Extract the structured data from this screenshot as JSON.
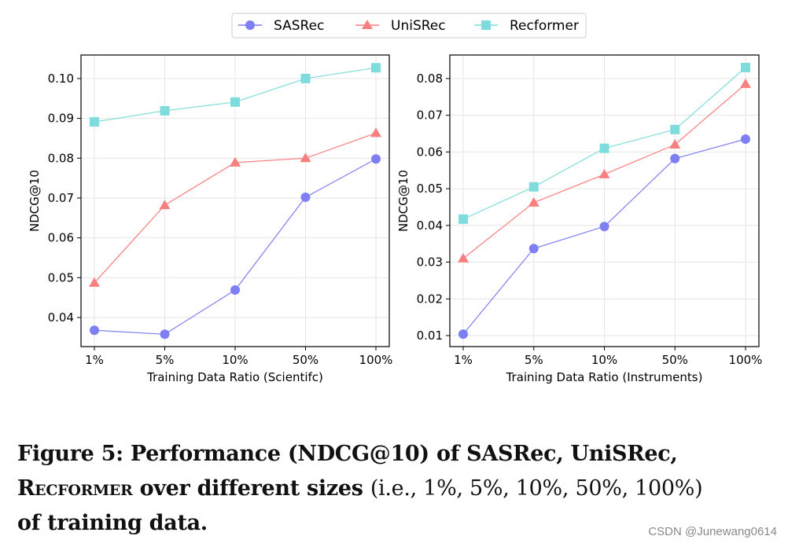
{
  "legend": [
    "SASRec",
    "UniSRec",
    "Recformer"
  ],
  "colors": {
    "SASRec": "#7f7ff5",
    "UniSRec": "#f77f7f",
    "Recformer": "#7fdcdc"
  },
  "markers": {
    "SASRec": "circle",
    "UniSRec": "triangle",
    "Recformer": "square"
  },
  "chart_data": [
    {
      "type": "line",
      "categories": [
        "1%",
        "5%",
        "10%",
        "50%",
        "100%"
      ],
      "xlabel": "Training Data Ratio (Scientifc)",
      "ylabel": "NDCG@10",
      "ylim": [
        0.0327,
        0.1059
      ],
      "yticks": [
        0.04,
        0.05,
        0.06,
        0.07,
        0.08,
        0.09,
        0.1
      ],
      "ytick_labels": [
        "0.04",
        "0.05",
        "0.06",
        "0.07",
        "0.08",
        "0.09",
        "0.10"
      ],
      "grid": true,
      "series": [
        {
          "name": "SASRec",
          "values": [
            0.0368,
            0.0358,
            0.0469,
            0.0702,
            0.0798
          ]
        },
        {
          "name": "UniSRec",
          "values": [
            0.0487,
            0.0682,
            0.0789,
            0.08,
            0.0863
          ]
        },
        {
          "name": "Recformer",
          "values": [
            0.0891,
            0.0919,
            0.0941,
            0.1,
            0.1027
          ]
        }
      ]
    },
    {
      "type": "line",
      "categories": [
        "1%",
        "5%",
        "10%",
        "50%",
        "100%"
      ],
      "xlabel": "Training Data Ratio (Instruments)",
      "ylabel": "NDCG@10",
      "ylim": [
        0.007,
        0.0864
      ],
      "yticks": [
        0.01,
        0.02,
        0.03,
        0.04,
        0.05,
        0.06,
        0.07,
        0.08
      ],
      "ytick_labels": [
        "0.01",
        "0.02",
        "0.03",
        "0.04",
        "0.05",
        "0.06",
        "0.07",
        "0.08"
      ],
      "grid": true,
      "series": [
        {
          "name": "SASRec",
          "values": [
            0.0104,
            0.0337,
            0.0397,
            0.0582,
            0.0635
          ]
        },
        {
          "name": "UniSRec",
          "values": [
            0.031,
            0.0462,
            0.0539,
            0.062,
            0.0785
          ]
        },
        {
          "name": "Recformer",
          "values": [
            0.0417,
            0.0505,
            0.061,
            0.0661,
            0.083
          ]
        }
      ]
    }
  ],
  "caption": {
    "line1": "Figure 5: Performance (NDCG@10) of SASRec, UniSRec,",
    "line2_name": "Recformer",
    "line2_rest": " over different sizes ",
    "line2_values": "(i.e., 1%, 5%, 10%, 50%, 100%)",
    "line3": "of training data."
  },
  "watermark": "CSDN @Junewang0614"
}
